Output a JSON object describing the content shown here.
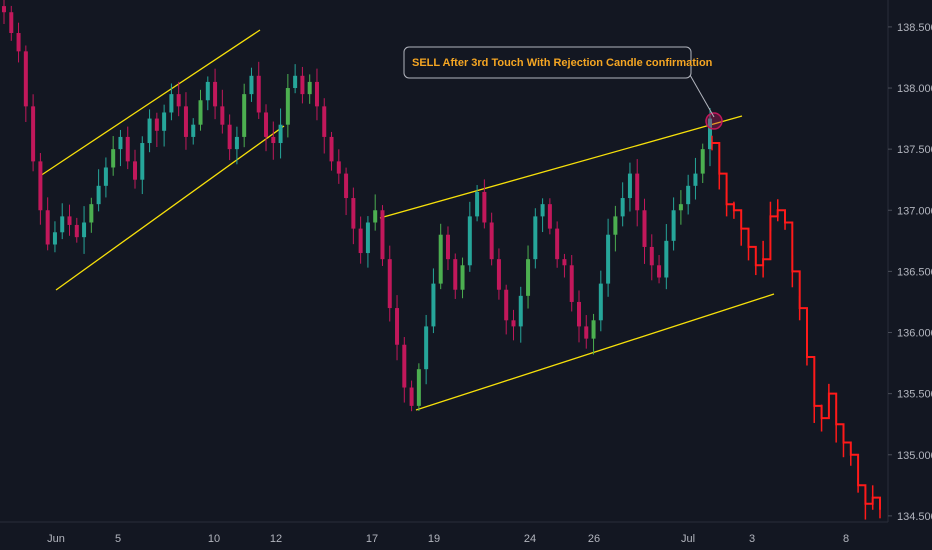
{
  "chart_data": {
    "type": "candlestick",
    "title": "",
    "xlabel": "",
    "ylabel": "",
    "ylim": [
      134.45,
      138.72
    ],
    "y_ticks": [
      "138.500",
      "138.000",
      "137.500",
      "137.000",
      "136.500",
      "136.000",
      "135.500",
      "135.000",
      "134.500"
    ],
    "x_ticks": [
      "Jun",
      "5",
      "10",
      "12",
      "17",
      "19",
      "24",
      "26",
      "Jul",
      "3",
      "8"
    ],
    "annotation": "SELL After 3rd Touch With Rejection Candle confirmation",
    "colors": {
      "background": "#131722",
      "bull": "#26a69a",
      "bear": "#c2185b",
      "bull_alt": "#4caf50",
      "projection": "#ff1a1a",
      "trendline": "#f7e00a",
      "annotation_text": "#f5a623",
      "axis_text": "#b2b5be"
    },
    "trendlines": [
      {
        "label": "channel-1-upper",
        "x": [
          "Jun 2",
          "Jun 11"
        ],
        "y": [
          137.3,
          138.5
        ]
      },
      {
        "label": "channel-1-lower",
        "x": [
          "Jun 2",
          "Jun 11"
        ],
        "y": [
          136.29,
          137.36
        ]
      },
      {
        "label": "channel-2-upper",
        "x": [
          "Jun 17",
          "Jul 3"
        ],
        "y": [
          136.95,
          137.8
        ]
      },
      {
        "label": "channel-2-lower",
        "x": [
          "Jun 18",
          "Jul 4"
        ],
        "y": [
          135.35,
          136.34
        ]
      }
    ],
    "rejection_point": {
      "x": "Jul 1",
      "y": 137.73
    },
    "series": [
      {
        "values": [
          138.62,
          138.45,
          138.3,
          137.85,
          137.4,
          137.0,
          136.72,
          136.82,
          136.95,
          136.88,
          136.78,
          136.9,
          137.05,
          137.2,
          137.35,
          137.5,
          137.6,
          137.4,
          137.25,
          137.55,
          137.75,
          137.65,
          137.8,
          137.95,
          137.85,
          137.6,
          137.7,
          137.9,
          138.05,
          137.85,
          137.7,
          137.5,
          137.6,
          137.95,
          138.1,
          137.8,
          137.6,
          137.55,
          137.7,
          138.0,
          138.1,
          137.95,
          138.05,
          137.85,
          137.6,
          137.4,
          137.3,
          137.1,
          136.85,
          136.65,
          136.9,
          137.0,
          136.6,
          136.2,
          135.9,
          135.55,
          135.4,
          135.7,
          136.05,
          136.4,
          136.8,
          136.6,
          136.35,
          136.55,
          136.95,
          137.15,
          136.9,
          136.6,
          136.35,
          136.1,
          136.05,
          136.3,
          136.6,
          136.95,
          137.05,
          136.85,
          136.6,
          136.55,
          136.25,
          136.05,
          135.95,
          136.1,
          136.4,
          136.8,
          136.95,
          137.1,
          137.3,
          137.0,
          136.7,
          136.55,
          136.45,
          136.75,
          137.0,
          137.05,
          137.2,
          137.3,
          137.5,
          137.75,
          137.55,
          137.3,
          137.05,
          137.0,
          136.85,
          136.7,
          136.55,
          136.6,
          136.95,
          137.0,
          136.9,
          136.5,
          136.2,
          135.8,
          135.4,
          135.3,
          135.5,
          135.25,
          135.1,
          135.0,
          134.75,
          134.6,
          134.65,
          134.55
        ]
      }
    ]
  }
}
